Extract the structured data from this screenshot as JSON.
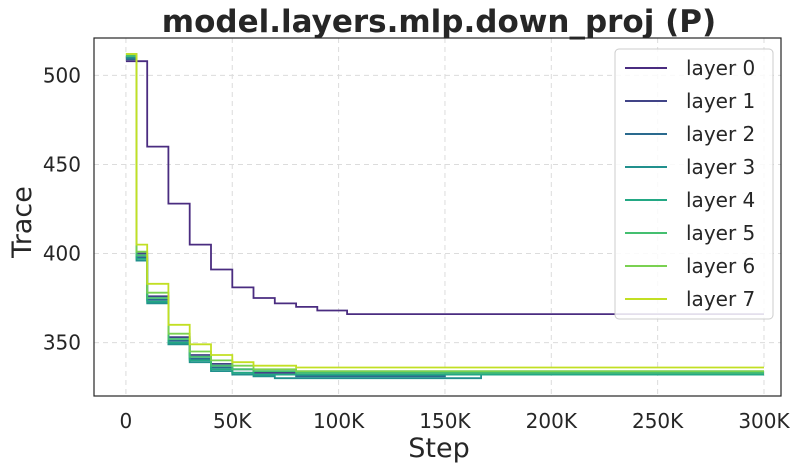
{
  "chart_data": {
    "type": "line",
    "title": "model.layers.mlp.down_proj (P)",
    "xlabel": "Step",
    "ylabel": "Trace",
    "xlim": [
      -15000,
      308000
    ],
    "ylim": [
      320,
      521
    ],
    "xticks": [
      0,
      50000,
      100000,
      150000,
      200000,
      250000,
      300000
    ],
    "xtick_labels": [
      "0",
      "50K",
      "100K",
      "150K",
      "200K",
      "250K",
      "300K"
    ],
    "yticks": [
      350,
      400,
      450,
      500
    ],
    "ytick_labels": [
      "350",
      "400",
      "450",
      "500"
    ],
    "grid": true,
    "legend_position": "top-right",
    "series": [
      {
        "name": "layer 0",
        "color": "#4a2c80",
        "x": [
          0,
          10000,
          20000,
          30000,
          40000,
          50000,
          60000,
          70000,
          80000,
          90000,
          104000,
          150000,
          200000,
          250000,
          300000
        ],
        "y": [
          508,
          460,
          428,
          405,
          391,
          381,
          375,
          372,
          370,
          368,
          366,
          366,
          366,
          366,
          366
        ]
      },
      {
        "name": "layer 1",
        "color": "#414487",
        "x": [
          0,
          5000,
          10000,
          20000,
          30000,
          40000,
          50000,
          60000,
          80000,
          100000,
          150000,
          200000,
          250000,
          300000
        ],
        "y": [
          510,
          400,
          376,
          353,
          343,
          338,
          335,
          333,
          332,
          332,
          332,
          332,
          332,
          332
        ]
      },
      {
        "name": "layer 2",
        "color": "#2a6a8e",
        "x": [
          0,
          5000,
          10000,
          20000,
          30000,
          40000,
          50000,
          60000,
          80000,
          100000,
          150000,
          200000,
          250000,
          300000
        ],
        "y": [
          509,
          398,
          374,
          351,
          341,
          336,
          333,
          332,
          331,
          331,
          332,
          332,
          332,
          332
        ]
      },
      {
        "name": "layer 3",
        "color": "#21908d",
        "x": [
          0,
          5000,
          10000,
          20000,
          30000,
          40000,
          50000,
          60000,
          70000,
          100000,
          150000,
          167000,
          200000,
          250000,
          300000
        ],
        "y": [
          510,
          396,
          372,
          349,
          339,
          334,
          332,
          331,
          330,
          330,
          330,
          332,
          332,
          332,
          332
        ]
      },
      {
        "name": "layer 4",
        "color": "#23a884",
        "x": [
          0,
          5000,
          10000,
          20000,
          30000,
          40000,
          50000,
          60000,
          80000,
          100000,
          150000,
          200000,
          250000,
          300000
        ],
        "y": [
          511,
          397,
          373,
          350,
          340,
          335,
          333,
          332,
          332,
          332,
          332,
          332,
          332,
          332
        ]
      },
      {
        "name": "layer 5",
        "color": "#44bf70",
        "x": [
          0,
          5000,
          10000,
          20000,
          30000,
          40000,
          50000,
          60000,
          80000,
          100000,
          150000,
          200000,
          250000,
          300000
        ],
        "y": [
          511,
          399,
          375,
          352,
          342,
          337,
          335,
          334,
          333,
          333,
          333,
          333,
          333,
          333
        ]
      },
      {
        "name": "layer 6",
        "color": "#7ad151",
        "x": [
          0,
          5000,
          10000,
          20000,
          30000,
          40000,
          50000,
          60000,
          80000,
          100000,
          150000,
          200000,
          250000,
          300000
        ],
        "y": [
          512,
          401,
          378,
          355,
          345,
          340,
          337,
          335,
          334,
          334,
          334,
          334,
          334,
          334
        ]
      },
      {
        "name": "layer 7",
        "color": "#c2df23",
        "x": [
          0,
          5000,
          10000,
          20000,
          30000,
          40000,
          50000,
          60000,
          80000,
          100000,
          150000,
          200000,
          250000,
          300000
        ],
        "y": [
          512,
          405,
          383,
          360,
          349,
          343,
          339,
          337,
          336,
          336,
          336,
          336,
          336,
          336
        ]
      }
    ]
  }
}
